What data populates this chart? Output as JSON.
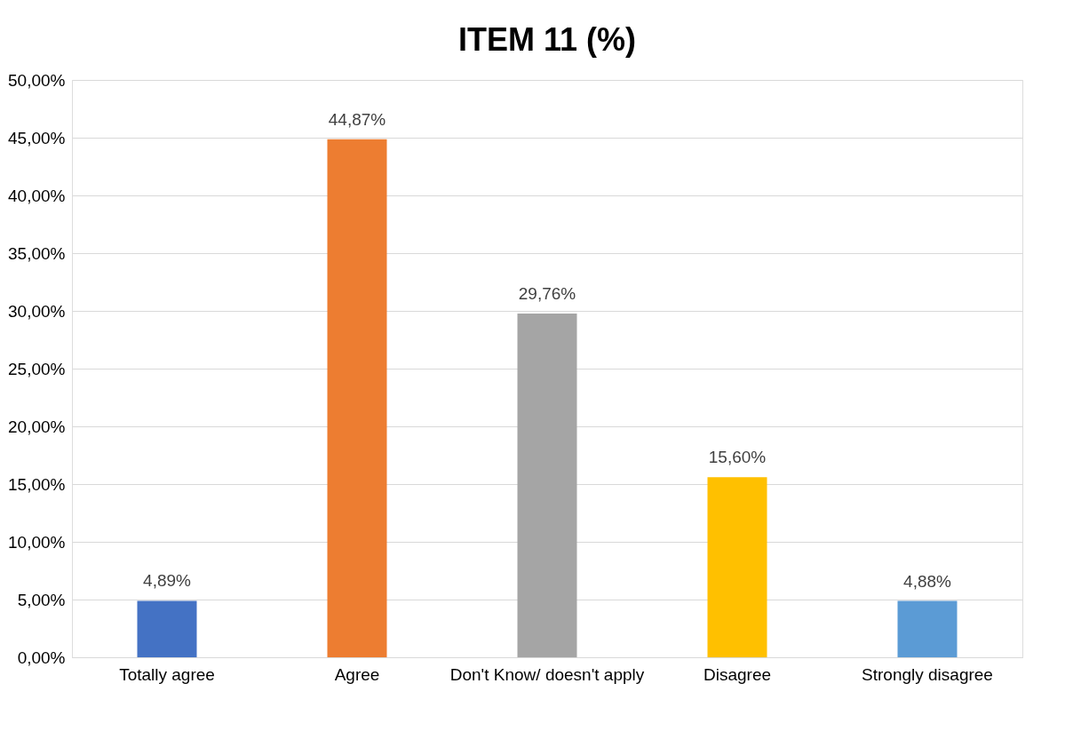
{
  "chart_data": {
    "type": "bar",
    "title": "ITEM 11 (%)",
    "categories": [
      "Totally agree",
      "Agree",
      "Don't Know/ doesn't apply",
      "Disagree",
      "Strongly disagree"
    ],
    "values": [
      4.89,
      44.87,
      29.76,
      15.6,
      4.88
    ],
    "colors": [
      "#4472c4",
      "#ed7d31",
      "#a5a5a5",
      "#ffc000",
      "#5b9bd5"
    ],
    "value_labels": [
      "4,89%",
      "44,87%",
      "29,76%",
      "15,60%",
      "4,88%"
    ],
    "ylim": [
      0,
      50
    ],
    "yticks": [
      {
        "value": 0,
        "label": "0,00%"
      },
      {
        "value": 5,
        "label": "5,00%"
      },
      {
        "value": 10,
        "label": "10,00%"
      },
      {
        "value": 15,
        "label": "15,00%"
      },
      {
        "value": 20,
        "label": "20,00%"
      },
      {
        "value": 25,
        "label": "25,00%"
      },
      {
        "value": 30,
        "label": "30,00%"
      },
      {
        "value": 35,
        "label": "35,00%"
      },
      {
        "value": 40,
        "label": "40,00%"
      },
      {
        "value": 45,
        "label": "45,00%"
      },
      {
        "value": 50,
        "label": "50,00%"
      }
    ],
    "grid": "y",
    "legend": false
  }
}
